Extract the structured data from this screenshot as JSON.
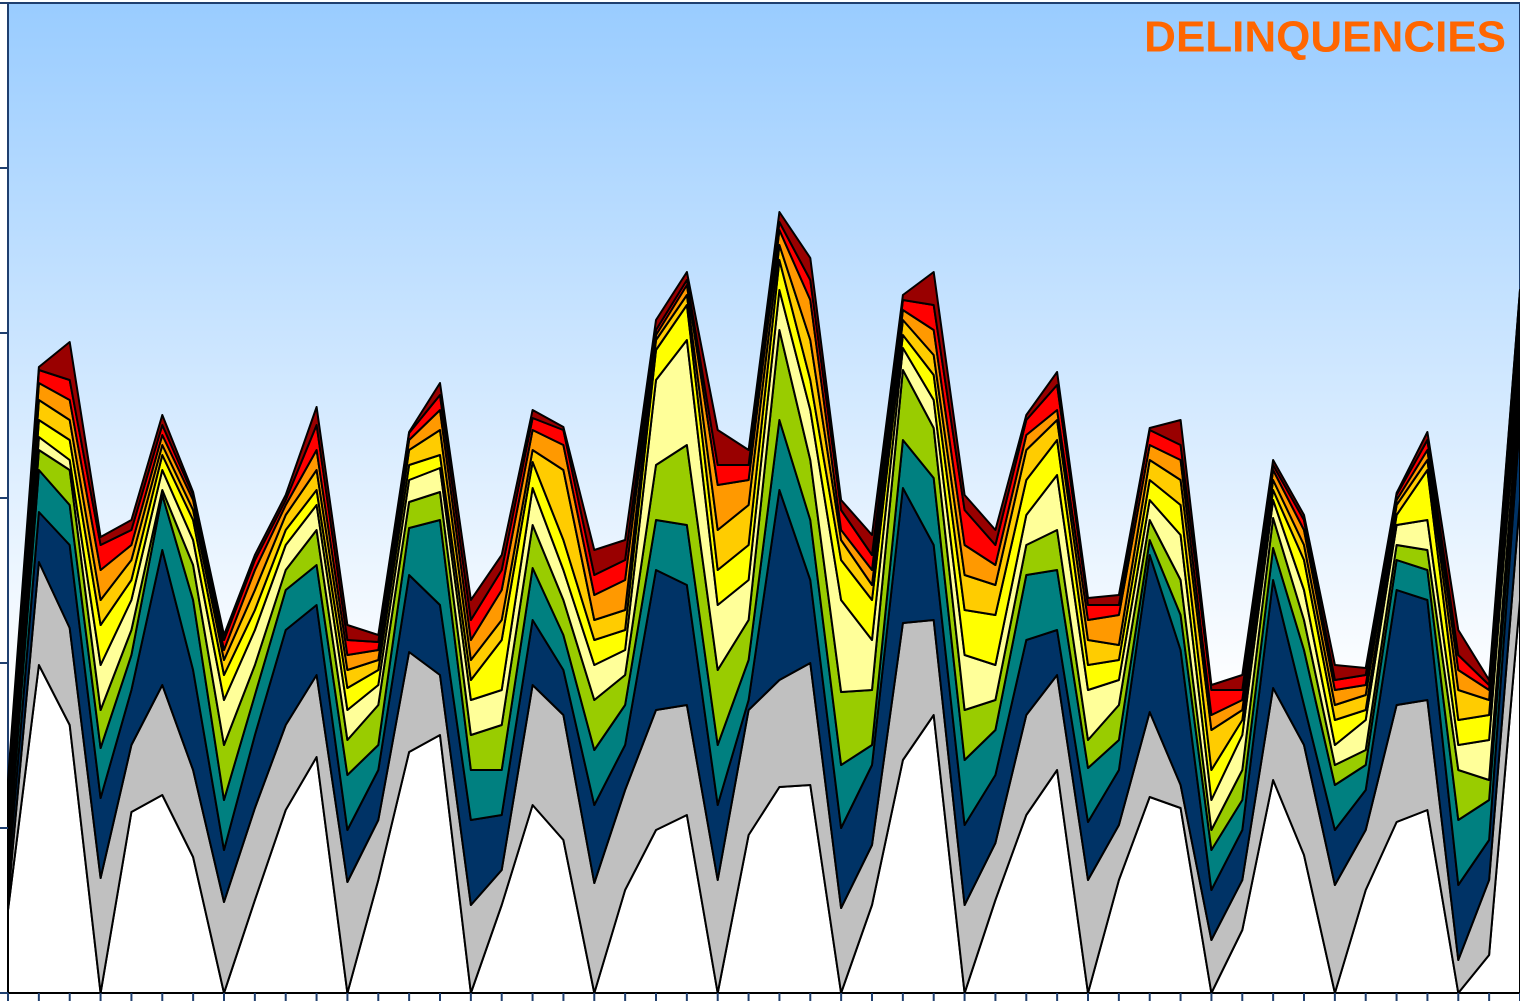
{
  "chart_data": {
    "type": "stacked_area",
    "title": "DELINQUENCIES",
    "categories": [
      null,
      null,
      null,
      null,
      null,
      null,
      null,
      null,
      null,
      null,
      null,
      null,
      null,
      null,
      null,
      null,
      null,
      null,
      null,
      null,
      null,
      null,
      null,
      null,
      null,
      null,
      null,
      null,
      null,
      null,
      null,
      null,
      null,
      null,
      null,
      null,
      null,
      null,
      null,
      null,
      null,
      null,
      null,
      null,
      null,
      null,
      null,
      null,
      null,
      null
    ],
    "ylim": [
      0,
      990
    ],
    "yticks": [
      0,
      165,
      330,
      495,
      660,
      825,
      990
    ],
    "series": [
      {
        "color": "#ffffff",
        "values": [
          83,
          328,
          268,
          0,
          181,
          198,
          136,
          0,
          93,
          183,
          236,
          0,
          113,
          241,
          258,
          0,
          88,
          188,
          153,
          0,
          103,
          163,
          178,
          0,
          158,
          206,
          208,
          0,
          88,
          233,
          278,
          0,
          93,
          178,
          223,
          0,
          113,
          196,
          185,
          0,
          63,
          213,
          138,
          0,
          103,
          171,
          183,
          0,
          38,
          393
        ]
      },
      {
        "color": "#c0c0c0",
        "values": [
          10,
          103,
          97,
          115,
          67,
          110,
          87,
          91,
          92,
          85,
          82,
          111,
          60,
          100,
          60,
          88,
          35,
          120,
          125,
          110,
          100,
          120,
          110,
          113,
          125,
          107,
          122,
          85,
          60,
          137,
          95,
          88,
          57,
          100,
          95,
          113,
          55,
          85,
          23,
          53,
          50,
          92,
          110,
          108,
          60,
          117,
          110,
          33,
          75,
          100
        ]
      },
      {
        "color": "#003366",
        "values": [
          20,
          50,
          83,
          80,
          55,
          135,
          100,
          52,
          73,
          95,
          70,
          52,
          50,
          77,
          70,
          85,
          55,
          65,
          45,
          78,
          45,
          140,
          120,
          75,
          10,
          190,
          83,
          80,
          80,
          135,
          75,
          80,
          68,
          75,
          45,
          58,
          55,
          157,
          135,
          50,
          50,
          108,
          40,
          55,
          40,
          115,
          100,
          75,
          40,
          80
        ]
      },
      {
        "color": "#008080",
        "values": [
          20,
          42,
          40,
          50,
          35,
          55,
          70,
          50,
          40,
          40,
          40,
          55,
          25,
          47,
          85,
          50,
          45,
          52,
          35,
          55,
          40,
          50,
          60,
          60,
          40,
          70,
          60,
          63,
          20,
          48,
          67,
          65,
          45,
          65,
          60,
          54,
          30,
          15,
          35,
          40,
          30,
          32,
          55,
          45,
          25,
          30,
          30,
          65,
          40,
          20
        ]
      },
      {
        "color": "#99cc00",
        "values": [
          10,
          20,
          35,
          38,
          25,
          5,
          35,
          55,
          30,
          20,
          35,
          35,
          40,
          26,
          28,
          35,
          45,
          43,
          35,
          50,
          30,
          55,
          80,
          75,
          40,
          90,
          60,
          73,
          55,
          70,
          50,
          50,
          30,
          30,
          40,
          28,
          35,
          20,
          35,
          20,
          30,
          30,
          30,
          20,
          15,
          15,
          20,
          50,
          20,
          20
        ]
      },
      {
        "color": "#ffff99",
        "values": [
          10,
          13,
          10,
          45,
          30,
          20,
          25,
          45,
          35,
          25,
          25,
          30,
          20,
          22,
          24,
          35,
          35,
          37,
          30,
          35,
          25,
          85,
          105,
          65,
          40,
          40,
          50,
          92,
          50,
          22,
          28,
          55,
          35,
          30,
          55,
          50,
          25,
          20,
          45,
          30,
          35,
          18,
          30,
          20,
          30,
          20,
          30,
          25,
          40,
          20
        ]
      },
      {
        "color": "#ffff00",
        "values": [
          10,
          17,
          20,
          40,
          20,
          15,
          20,
          25,
          20,
          15,
          15,
          22,
          15,
          15,
          13,
          20,
          50,
          26,
          30,
          25,
          20,
          30,
          35,
          35,
          35,
          30,
          30,
          40,
          40,
          13,
          25,
          45,
          50,
          35,
          35,
          25,
          20,
          20,
          30,
          30,
          15,
          10,
          30,
          25,
          10,
          10,
          50,
          25,
          25,
          20
        ]
      },
      {
        "color": "#ffcc00",
        "values": [
          10,
          20,
          20,
          25,
          20,
          10,
          10,
          15,
          20,
          15,
          20,
          18,
          10,
          15,
          25,
          20,
          20,
          12,
          70,
          20,
          20,
          10,
          10,
          40,
          40,
          15,
          40,
          20,
          15,
          15,
          20,
          35,
          30,
          30,
          20,
          25,
          15,
          20,
          25,
          40,
          10,
          10,
          15,
          15,
          15,
          10,
          10,
          30,
          15,
          20
        ]
      },
      {
        "color": "#ff9900",
        "values": [
          10,
          17,
          20,
          30,
          15,
          10,
          10,
          10,
          20,
          10,
          20,
          15,
          10,
          10,
          20,
          20,
          30,
          20,
          25,
          25,
          30,
          5,
          10,
          45,
          25,
          15,
          40,
          10,
          15,
          10,
          25,
          30,
          20,
          15,
          10,
          20,
          30,
          15,
          20,
          15,
          10,
          10,
          15,
          15,
          10,
          5,
          10,
          20,
          10,
          20
        ]
      },
      {
        "color": "#ff0000",
        "values": [
          10,
          13,
          20,
          25,
          15,
          10,
          5,
          10,
          10,
          5,
          25,
          15,
          8,
          7,
          15,
          20,
          20,
          12,
          15,
          20,
          20,
          5,
          5,
          20,
          15,
          8,
          20,
          20,
          15,
          10,
          25,
          35,
          20,
          15,
          25,
          15,
          10,
          15,
          15,
          25,
          10,
          5,
          10,
          10,
          10,
          5,
          10,
          15,
          5,
          10
        ]
      },
      {
        "color": "#990000",
        "values": [
          20,
          3,
          38,
          8,
          10,
          10,
          3,
          5,
          5,
          5,
          18,
          15,
          7,
          1,
          12,
          20,
          15,
          8,
          3,
          25,
          20,
          10,
          8,
          35,
          15,
          10,
          22,
          10,
          20,
          5,
          33,
          15,
          15,
          5,
          13,
          7,
          10,
          2,
          25,
          5,
          15,
          5,
          5,
          15,
          7,
          2,
          8,
          25,
          5,
          0
        ]
      }
    ]
  }
}
